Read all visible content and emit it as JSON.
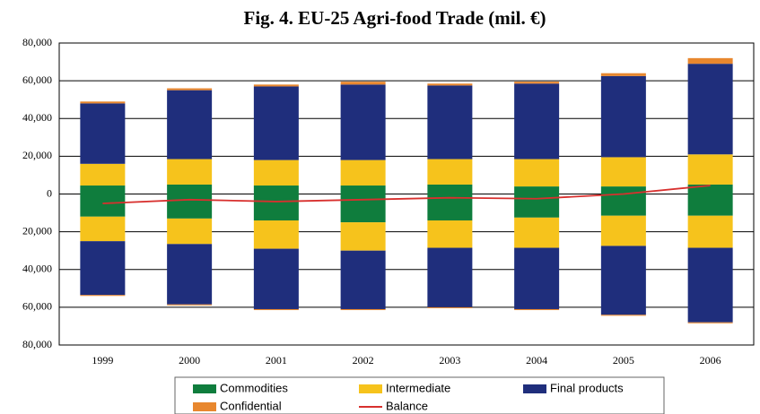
{
  "chart_data": {
    "type": "bar",
    "title": "Fig. 4.  EU-25 Agri-food Trade (mil. €)",
    "categories": [
      "1999",
      "2000",
      "2001",
      "2002",
      "2003",
      "2004",
      "2005",
      "2006"
    ],
    "ylim": [
      -80000,
      80000
    ],
    "yticks": [
      {
        "value": 80000,
        "label": "80,000"
      },
      {
        "value": 60000,
        "label": "60,000"
      },
      {
        "value": 40000,
        "label": "40,000"
      },
      {
        "value": 20000,
        "label": "20,000"
      },
      0,
      {
        "value": -20000,
        "label": "20,000"
      },
      {
        "value": -40000,
        "label": "40,000"
      },
      {
        "value": -60000,
        "label": "60,000"
      },
      {
        "value": -80000,
        "label": "80,000"
      }
    ],
    "grid": true,
    "series": [
      {
        "name": "Commodities",
        "color": "#0f7d3d",
        "values": [
          4500,
          5000,
          4500,
          4500,
          5000,
          4000,
          4000,
          5000
        ],
        "negative_values": [
          -12000,
          -13000,
          -14000,
          -15000,
          -14000,
          -12500,
          -11500,
          -11500
        ]
      },
      {
        "name": "Intermediate",
        "color": "#f6c31c",
        "values": [
          11500,
          13500,
          13500,
          13500,
          13500,
          14500,
          15500,
          16000
        ],
        "negative_values": [
          -13000,
          -13500,
          -15000,
          -15000,
          -14500,
          -16000,
          -16000,
          -17000
        ]
      },
      {
        "name": "Final products",
        "color": "#1f2e7c",
        "values": [
          32000,
          36500,
          39000,
          40000,
          39000,
          40000,
          43000,
          48000
        ],
        "negative_values": [
          -28500,
          -32000,
          -32000,
          -31000,
          -31500,
          -32500,
          -36500,
          -39500
        ]
      },
      {
        "name": "Confidential",
        "color": "#e8872e",
        "values": [
          1000,
          1000,
          1000,
          1500,
          1000,
          1000,
          1500,
          3000
        ],
        "negative_values": [
          -500,
          -500,
          -500,
          -500,
          -500,
          -500,
          -500,
          -500
        ]
      },
      {
        "name": "Balance",
        "type": "line",
        "color": "#d8302e",
        "values": [
          -5000,
          -3000,
          -4000,
          -3000,
          -2000,
          -2500,
          0,
          4500
        ]
      }
    ]
  }
}
